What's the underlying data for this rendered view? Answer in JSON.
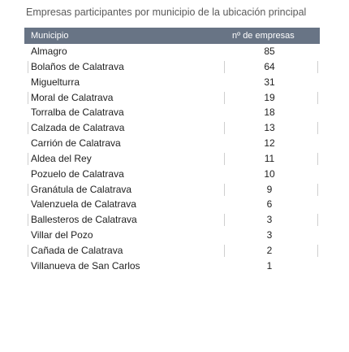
{
  "caption": "Empresas participantes por municipio de la ubicación principal",
  "table": {
    "headers": {
      "municipio": "Municipio",
      "count": "nº de empresas"
    },
    "rows": [
      {
        "name": "Almagro",
        "count": "85"
      },
      {
        "name": "Bolaños de Calatrava",
        "count": "64"
      },
      {
        "name": "Miguelturra",
        "count": "31"
      },
      {
        "name": "Moral de Calatrava",
        "count": "19"
      },
      {
        "name": "Torralba de Calatrava",
        "count": "18"
      },
      {
        "name": "Calzada de Calatrava",
        "count": "13"
      },
      {
        "name": "Carrión de Calatrava",
        "count": "12"
      },
      {
        "name": "Aldea del Rey",
        "count": "11"
      },
      {
        "name": "Pozuelo de Calatrava",
        "count": "10"
      },
      {
        "name": "Granátula de Calatrava",
        "count": "9"
      },
      {
        "name": "Valenzuela de Calatrava",
        "count": "6"
      },
      {
        "name": "Ballesteros de Calatrava",
        "count": "3"
      },
      {
        "name": "Villar del Pozo",
        "count": "3"
      },
      {
        "name": "Cañada de Calatrava",
        "count": "2"
      },
      {
        "name": "Villanueva de San Carlos",
        "count": "1"
      }
    ]
  }
}
